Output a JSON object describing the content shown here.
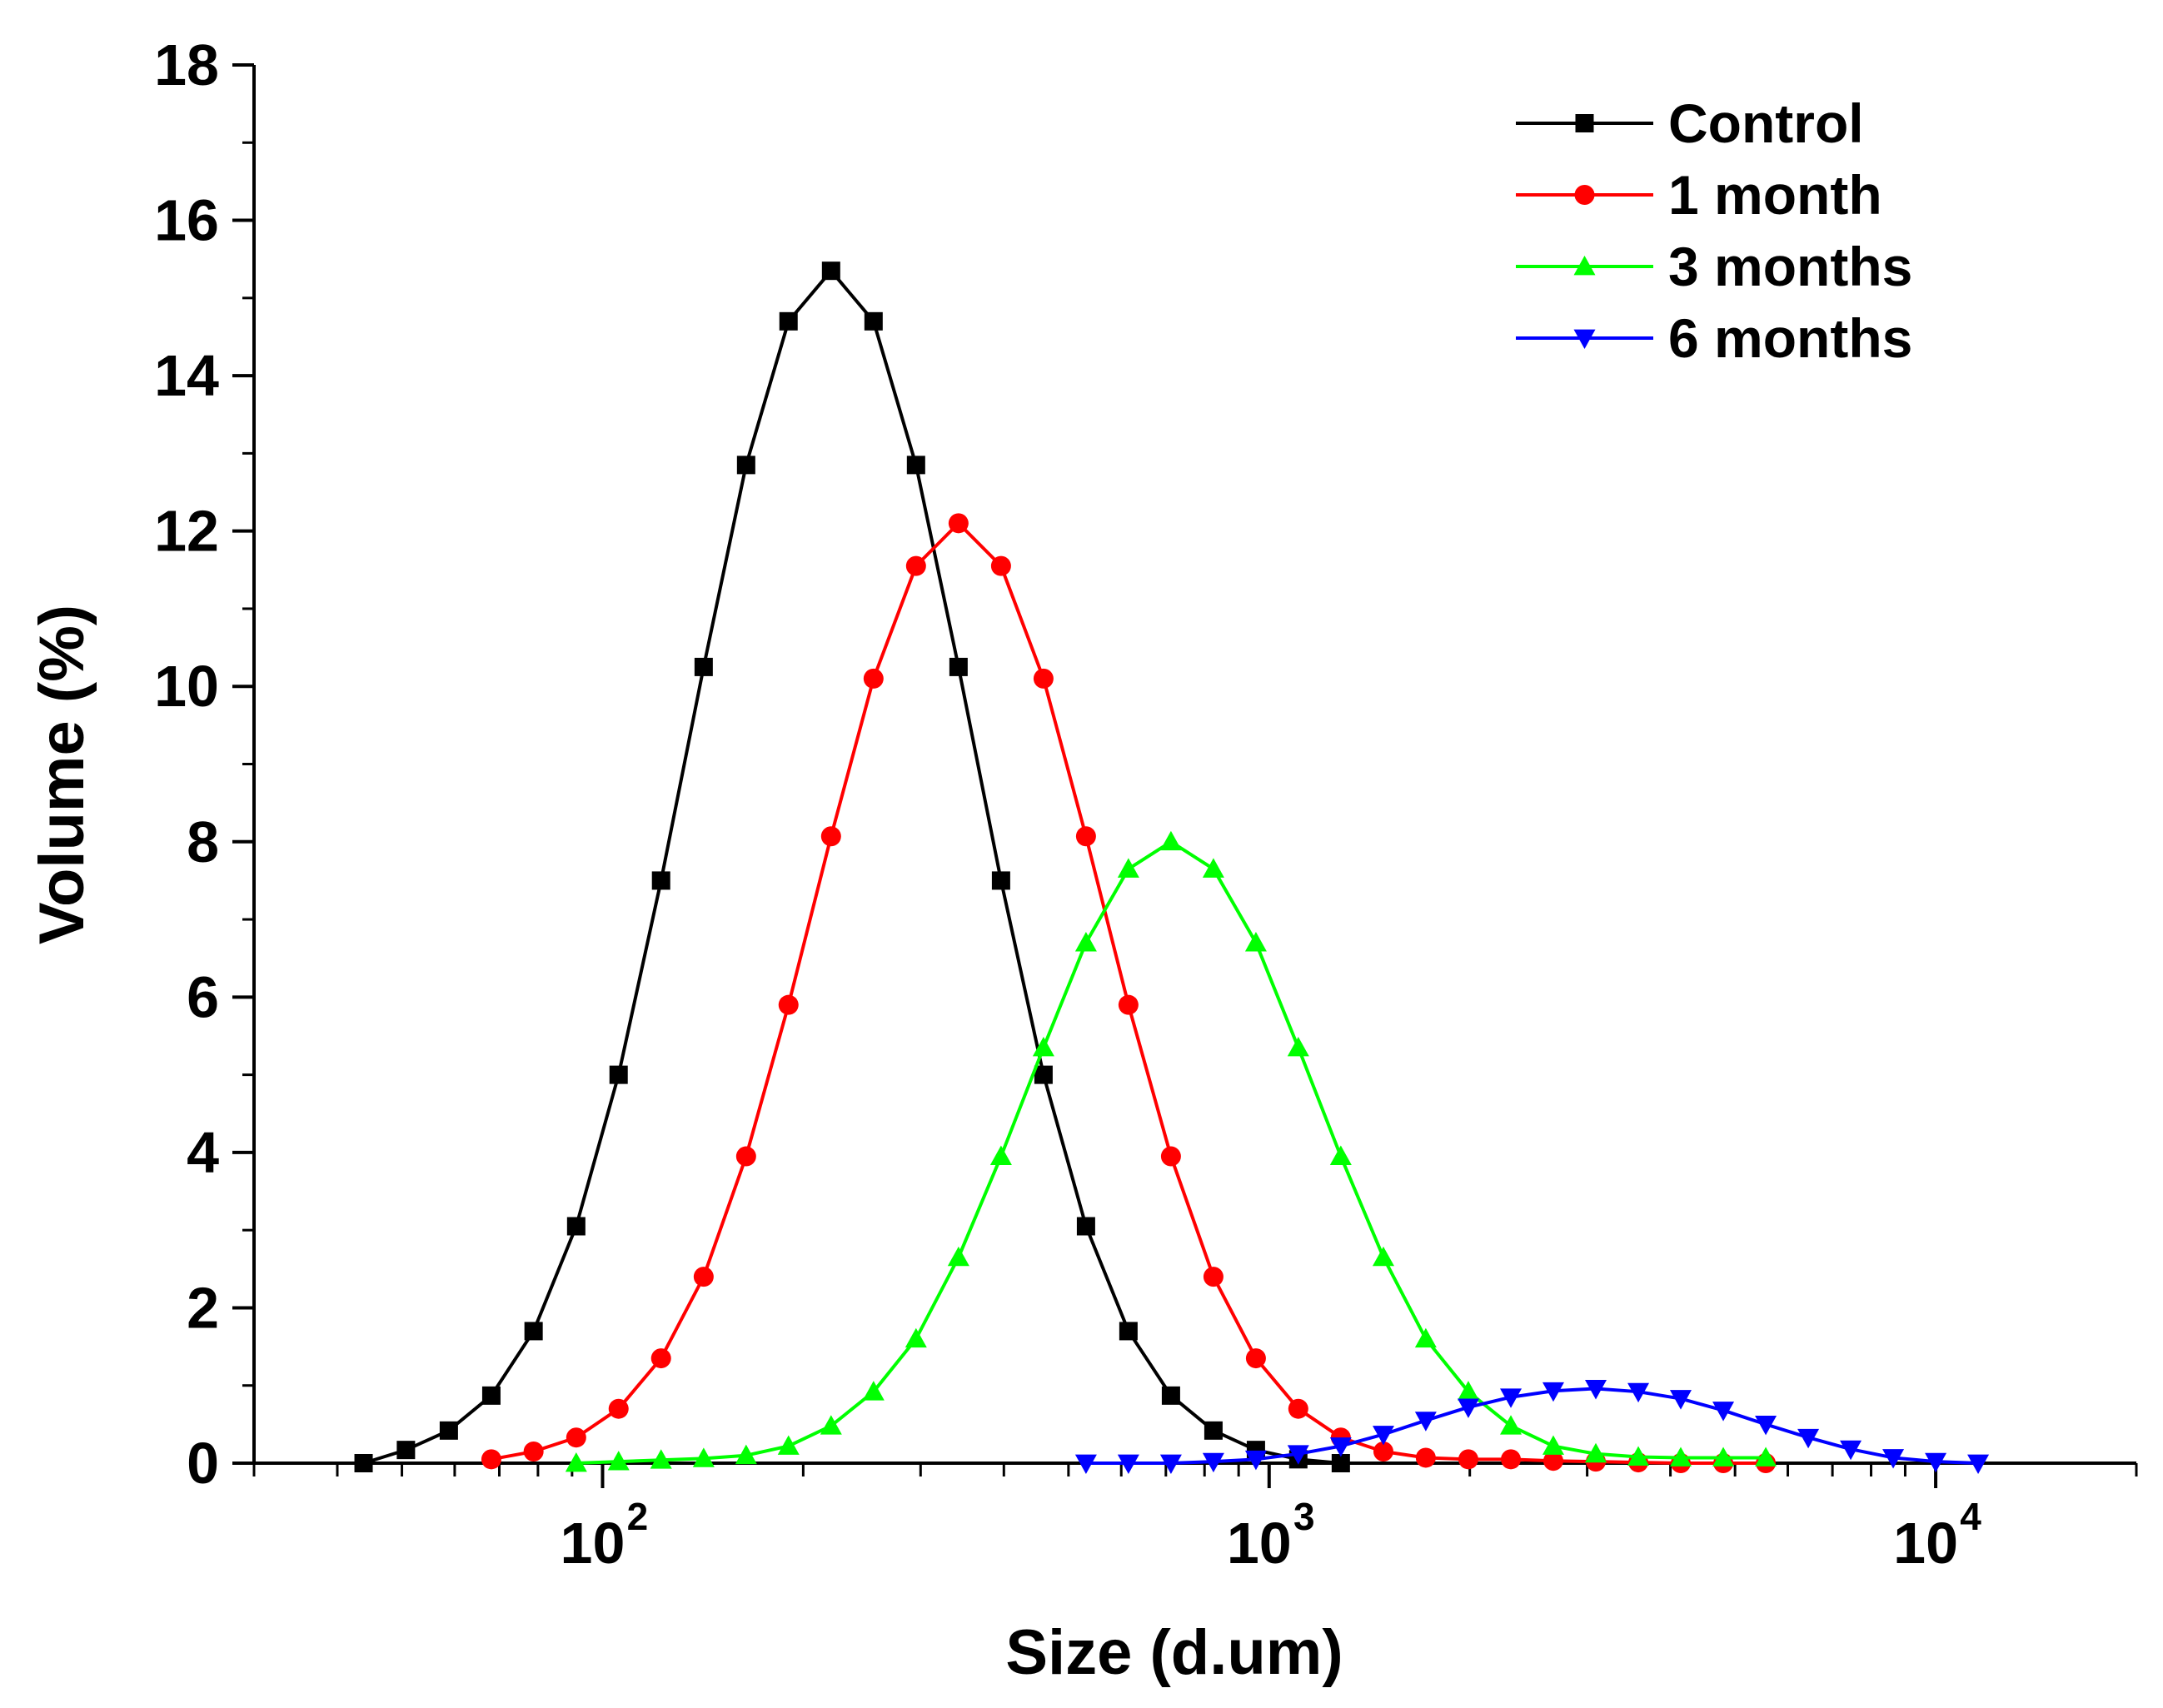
{
  "chart_data": {
    "type": "line",
    "title": "",
    "xlabel": "Size (d.um)",
    "ylabel": "Volume (%)",
    "x_scale": "log",
    "xlim": [
      30,
      20000
    ],
    "ylim": [
      0,
      18
    ],
    "x_ticks": [
      {
        "value": 100,
        "base": "10",
        "exp": "2"
      },
      {
        "value": 1000,
        "base": "10",
        "exp": "3"
      },
      {
        "value": 10000,
        "base": "10",
        "exp": "4"
      }
    ],
    "y_ticks": [
      "0",
      "2",
      "4",
      "6",
      "8",
      "10",
      "12",
      "14",
      "16",
      "18"
    ],
    "grid": false,
    "legend": "top-right",
    "series": [
      {
        "name": "Control",
        "color": "#000000",
        "marker": "square",
        "x": [
          43.8,
          50.7,
          58.8,
          68.1,
          78.8,
          91.3,
          105.7,
          122.4,
          141.8,
          164.2,
          190.1,
          220.2,
          255.0,
          295.3,
          342.0,
          396.1,
          458.7,
          531.2,
          615.1,
          712.4,
          825.0,
          955.4,
          1106,
          1281
        ],
        "y": [
          0.0,
          0.17,
          0.42,
          0.87,
          1.7,
          3.05,
          5.0,
          7.5,
          10.25,
          12.85,
          14.7,
          15.35,
          14.7,
          12.85,
          10.25,
          7.5,
          5.0,
          3.05,
          1.7,
          0.87,
          0.42,
          0.17,
          0.05,
          0.0
        ]
      },
      {
        "name": "1 month",
        "color": "#ff0000",
        "marker": "circle",
        "x": [
          68.1,
          78.8,
          91.3,
          105.7,
          122.4,
          141.8,
          164.2,
          190.1,
          220.2,
          255.0,
          295.3,
          342.0,
          396.1,
          458.7,
          531.2,
          615.1,
          712.4,
          825.0,
          955.4,
          1106,
          1281,
          1484,
          1718,
          1990,
          2305,
          2669,
          3091,
          3580,
          4145,
          4801,
          5560
        ],
        "y": [
          0.05,
          0.15,
          0.33,
          0.7,
          1.35,
          2.4,
          3.95,
          5.9,
          8.07,
          10.1,
          11.55,
          12.1,
          11.55,
          10.1,
          8.07,
          5.9,
          3.95,
          2.4,
          1.35,
          0.7,
          0.33,
          0.15,
          0.07,
          0.05,
          0.05,
          0.03,
          0.02,
          0.01,
          0.0,
          0.0,
          0.0
        ]
      },
      {
        "name": "3 months",
        "color": "#00ff00",
        "marker": "triangle-up",
        "x": [
          91.3,
          105.7,
          122.4,
          141.8,
          164.2,
          190.1,
          220.2,
          255.0,
          295.3,
          342.0,
          396.1,
          458.7,
          531.2,
          615.1,
          712.4,
          825.0,
          955.4,
          1106,
          1281,
          1484,
          1718,
          1990,
          2305,
          2669,
          3091,
          3580,
          4145,
          4801,
          5560
        ],
        "y": [
          0.0,
          0.02,
          0.04,
          0.06,
          0.1,
          0.22,
          0.48,
          0.92,
          1.6,
          2.65,
          3.95,
          5.35,
          6.7,
          7.65,
          8.0,
          7.65,
          6.7,
          5.35,
          3.95,
          2.65,
          1.6,
          0.92,
          0.48,
          0.22,
          0.12,
          0.08,
          0.07,
          0.07,
          0.07
        ]
      },
      {
        "name": "6 months",
        "color": "#0000ff",
        "marker": "triangle-down",
        "x": [
          531.2,
          615.1,
          712.4,
          825.0,
          955.4,
          1106,
          1281,
          1484,
          1718,
          1990,
          2305,
          2669,
          3091,
          3580,
          4145,
          4801,
          5560,
          6439,
          7456,
          8635,
          10000,
          11580
        ],
        "y": [
          0.0,
          0.0,
          0.0,
          0.02,
          0.05,
          0.12,
          0.22,
          0.37,
          0.55,
          0.72,
          0.85,
          0.93,
          0.96,
          0.92,
          0.83,
          0.68,
          0.5,
          0.33,
          0.18,
          0.07,
          0.02,
          0.0
        ]
      }
    ]
  }
}
